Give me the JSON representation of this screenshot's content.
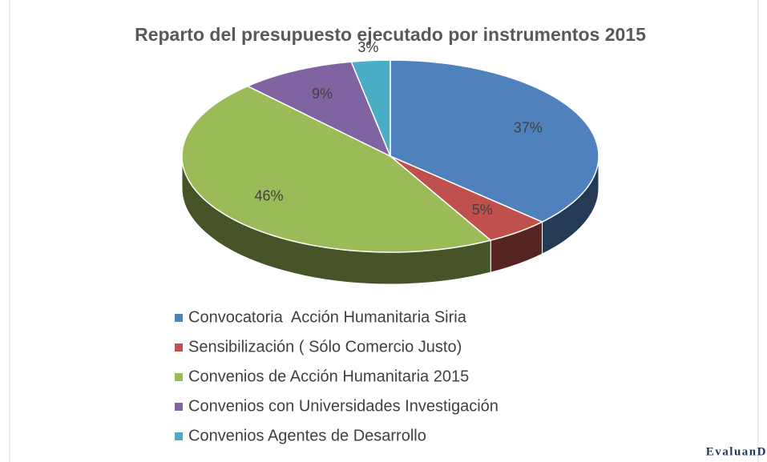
{
  "chart_data": {
    "type": "pie3d",
    "title": "Reparto del presupuesto ejecutado por instrumentos 2015",
    "categories": [
      "Convocatoria  Acción Humanitaria Siria",
      "Sensibilización ( Sólo Comercio Justo)",
      "Convenios de Acción Humanitaria 2015",
      "Convenios con Universidades Investigación",
      "Convenios Agentes de Desarrollo"
    ],
    "values": [
      37,
      5,
      46,
      9,
      3
    ],
    "value_labels": [
      "37%",
      "5%",
      "46%",
      "9%",
      "3%"
    ],
    "colors": [
      "#4f81bd",
      "#c0504d",
      "#9bbb59",
      "#8064a2",
      "#4bacc6"
    ],
    "legend": "bottom",
    "watermark": "EvaluanD"
  }
}
